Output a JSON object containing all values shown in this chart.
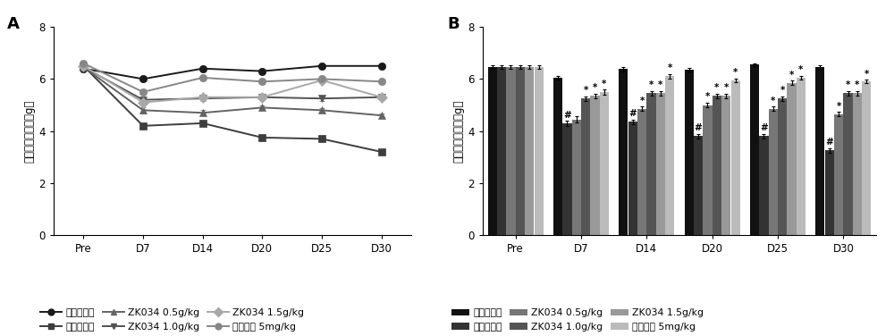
{
  "xticklabels": [
    "Pre",
    "D7",
    "D14",
    "D20",
    "D25",
    "D30"
  ],
  "line_data": {
    "正常对照组": [
      6.4,
      6.0,
      6.4,
      6.3,
      6.5,
      6.5
    ],
    "模型对照组": [
      6.5,
      4.2,
      4.3,
      3.75,
      3.7,
      3.2
    ],
    "ZK034 0.5g/kg": [
      6.45,
      4.8,
      4.7,
      4.9,
      4.8,
      4.6
    ],
    "ZK034 1.0g/kg": [
      6.45,
      5.2,
      5.25,
      5.3,
      5.25,
      5.3
    ],
    "ZK034 1.5g/kg": [
      6.5,
      5.1,
      5.3,
      5.3,
      5.95,
      5.3
    ],
    "普瑞巴林 5mg/kg": [
      6.6,
      5.5,
      6.05,
      5.9,
      6.0,
      5.9
    ]
  },
  "line_errors": {
    "正常对照组": [
      0.07,
      0.09,
      0.09,
      0.07,
      0.07,
      0.07
    ],
    "模型对照组": [
      0.07,
      0.09,
      0.09,
      0.09,
      0.09,
      0.09
    ],
    "ZK034 0.5g/kg": [
      0.07,
      0.11,
      0.1,
      0.09,
      0.09,
      0.09
    ],
    "ZK034 1.0g/kg": [
      0.07,
      0.09,
      0.09,
      0.09,
      0.09,
      0.09
    ],
    "ZK034 1.5g/kg": [
      0.07,
      0.09,
      0.09,
      0.09,
      0.09,
      0.09
    ],
    "普瑞巴林 5mg/kg": [
      0.07,
      0.11,
      0.09,
      0.09,
      0.09,
      0.07
    ]
  },
  "line_colors": {
    "正常对照组": "#1a1a1a",
    "模型对照组": "#3d3d3d",
    "ZK034 0.5g/kg": "#636363",
    "ZK034 1.0g/kg": "#525252",
    "ZK034 1.5g/kg": "#a8a8a8",
    "普瑞巴林 5mg/kg": "#878787"
  },
  "line_markers": {
    "正常对照组": "o",
    "模型对照组": "s",
    "ZK034 0.5g/kg": "^",
    "ZK034 1.0g/kg": "v",
    "ZK034 1.5g/kg": "D",
    "普瑞巴林 5mg/kg": "o"
  },
  "bar_data": {
    "正常对照组": [
      6.45,
      6.05,
      6.38,
      6.35,
      6.55,
      6.45
    ],
    "模型对照组": [
      6.45,
      4.3,
      4.35,
      3.8,
      3.8,
      3.25
    ],
    "ZK034 0.5g/kg": [
      6.45,
      4.45,
      4.85,
      5.0,
      4.85,
      4.65
    ],
    "ZK034 1.0g/kg": [
      6.45,
      5.25,
      5.45,
      5.35,
      5.25,
      5.45
    ],
    "ZK034 1.5g/kg": [
      6.45,
      5.35,
      5.45,
      5.35,
      5.85,
      5.45
    ],
    "普瑞巴林 5mg/kg": [
      6.45,
      5.5,
      6.1,
      5.95,
      6.05,
      5.9
    ]
  },
  "bar_errors": {
    "正常对照组": [
      0.06,
      0.07,
      0.09,
      0.07,
      0.06,
      0.07
    ],
    "模型对照组": [
      0.06,
      0.09,
      0.09,
      0.09,
      0.09,
      0.09
    ],
    "ZK034 0.5g/kg": [
      0.06,
      0.11,
      0.09,
      0.09,
      0.09,
      0.09
    ],
    "ZK034 1.0g/kg": [
      0.06,
      0.09,
      0.09,
      0.09,
      0.09,
      0.09
    ],
    "ZK034 1.5g/kg": [
      0.06,
      0.09,
      0.09,
      0.09,
      0.09,
      0.09
    ],
    "普瑞巴林 5mg/kg": [
      0.06,
      0.09,
      0.09,
      0.07,
      0.07,
      0.07
    ]
  },
  "bar_colors": {
    "正常对照组": "#111111",
    "模型对照组": "#333333",
    "ZK034 0.5g/kg": "#777777",
    "ZK034 1.0g/kg": "#555555",
    "ZK034 1.5g/kg": "#999999",
    "普瑞巴林 5mg/kg": "#bbbbbb"
  },
  "ylabel": "机械痛缩足阈値（g）",
  "ylim": [
    0,
    8
  ],
  "yticks": [
    0,
    2,
    4,
    6,
    8
  ],
  "legend_order": [
    "正常对照组",
    "模型对照组",
    "ZK034 0.5g/kg",
    "ZK034 1.0g/kg",
    "ZK034 1.5g/kg",
    "普瑞巴林 5mg/kg"
  ],
  "legend_labels_line": [
    "正常对照组",
    "模型对照组",
    "ZK034 0.5g/kg",
    "ZK034 1.0g/kg",
    "ZK034 1.5g/kg",
    "普瑞巴林 5mg/kg"
  ],
  "hash_timepoints": [
    "D7",
    "D14",
    "D20",
    "D25",
    "D30"
  ],
  "star_D7": [
    "普瑞巴林 5mg/kg",
    "ZK034 1.5g/kg",
    "ZK034 1.0g/kg"
  ],
  "star_D14": [
    "普瑞巴林 5mg/kg",
    "ZK034 1.5g/kg",
    "ZK034 1.0g/kg",
    "ZK034 0.5g/kg"
  ],
  "star_D20": [
    "普瑞巴林 5mg/kg",
    "ZK034 1.5g/kg",
    "ZK034 1.0g/kg",
    "ZK034 0.5g/kg"
  ],
  "star_D25": [
    "普瑞巴林 5mg/kg",
    "ZK034 1.5g/kg",
    "ZK034 1.0g/kg",
    "ZK034 0.5g/kg"
  ],
  "star_D30": [
    "普瑞巴林 5mg/kg",
    "ZK034 1.5g/kg",
    "ZK034 1.0g/kg",
    "ZK034 0.5g/kg"
  ]
}
